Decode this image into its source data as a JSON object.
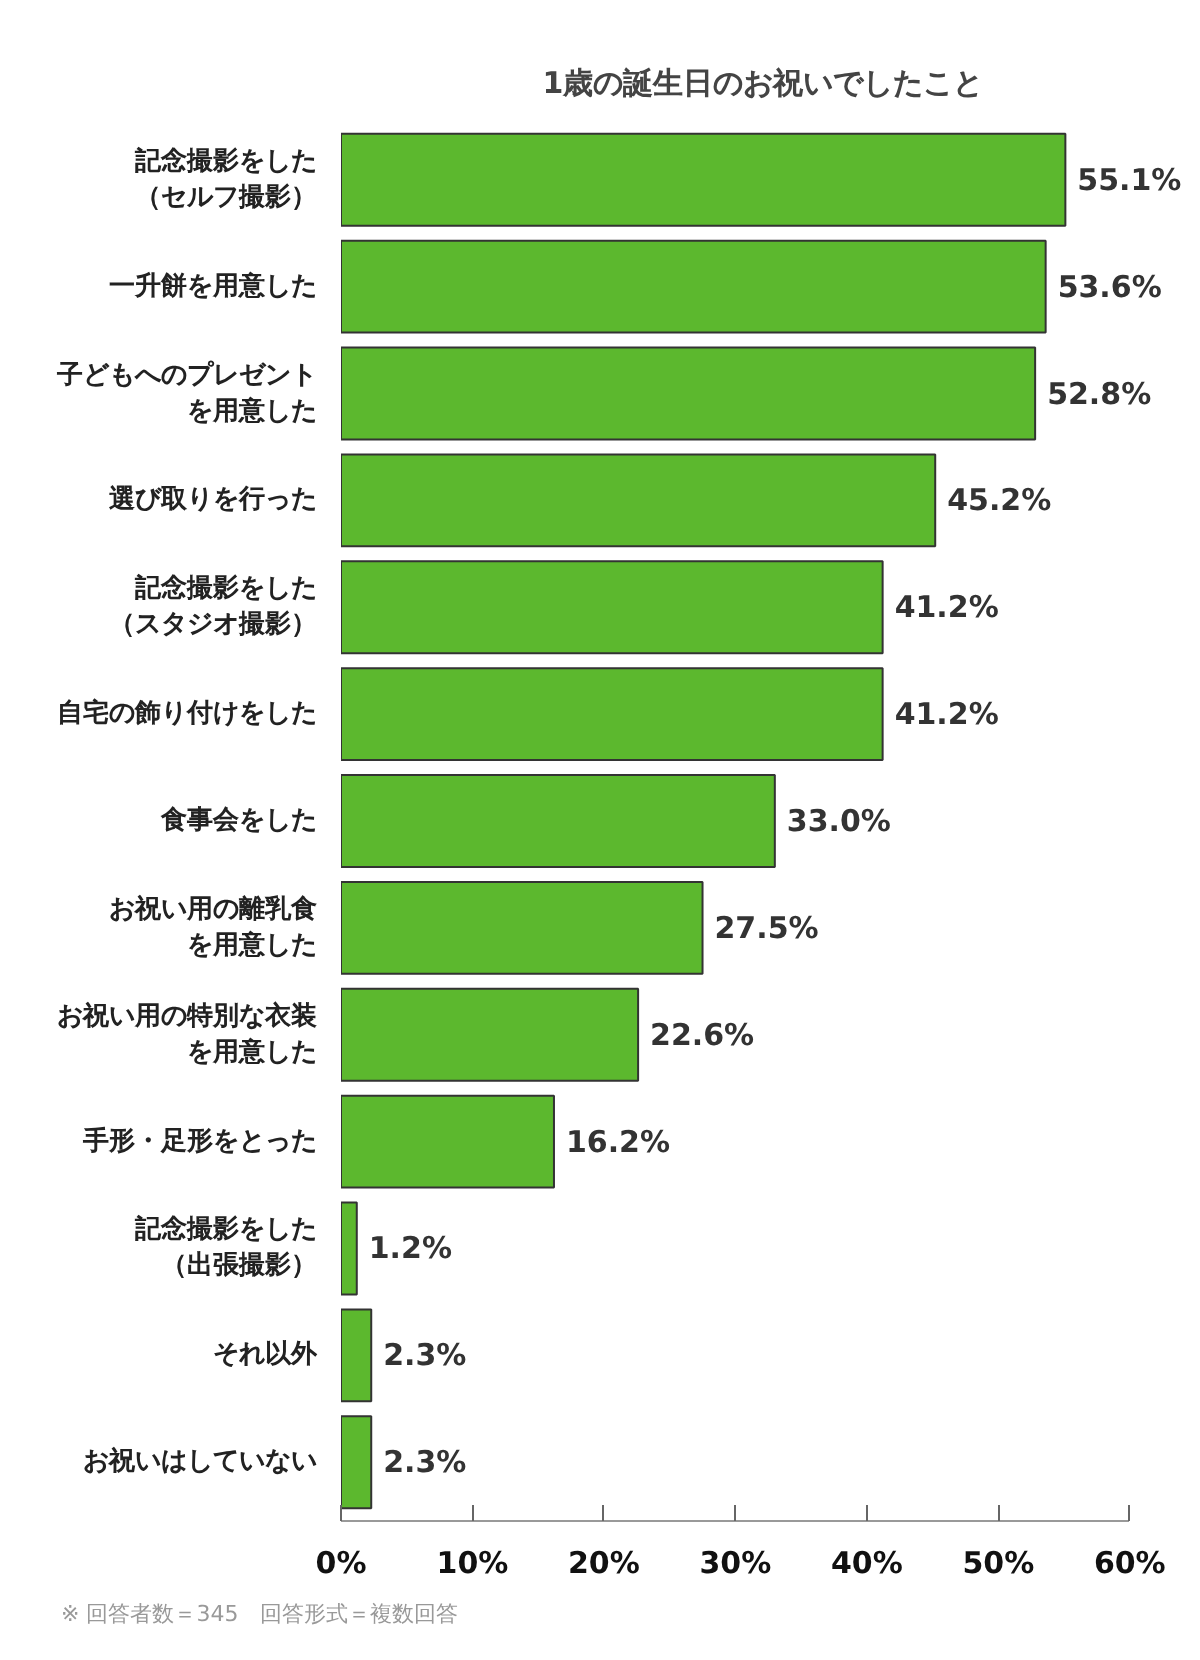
{
  "chart_data": {
    "type": "bar",
    "orientation": "horizontal",
    "title": "1歳の誕生日のお祝いでしたこと",
    "categories": [
      "記念撮影をした（セルフ撮影）",
      "一升餅を用意した",
      "子どもへのプレゼントを用意した",
      "選び取りを行った",
      "記念撮影をした（スタジオ撮影）",
      "自宅の飾り付けをした",
      "食事会をした",
      "お祝い用の離乳食を用意した",
      "お祝い用の特別な衣装を用意した",
      "手形・足形をとった",
      "記念撮影をした（出張撮影）",
      "それ以外",
      "お祝いはしていない"
    ],
    "values": [
      55.1,
      53.6,
      52.8,
      45.2,
      41.2,
      41.2,
      33.0,
      27.5,
      22.6,
      16.2,
      1.2,
      2.3,
      2.3
    ],
    "value_labels": [
      "55.1%",
      "53.6%",
      "52.8%",
      "45.2%",
      "41.2%",
      "41.2%",
      "33.0%",
      "27.5%",
      "22.6%",
      "16.2%",
      "1.2%",
      "2.3%",
      "2.3%"
    ],
    "color": "#5cb82e",
    "xlim": [
      0,
      60
    ],
    "xticks": [
      {
        "value": 0,
        "label": "0%"
      },
      {
        "value": 10,
        "label": "10%"
      },
      {
        "value": 20,
        "label": "20%"
      },
      {
        "value": 30,
        "label": "30%"
      },
      {
        "value": 40,
        "label": "40%"
      },
      {
        "value": 50,
        "label": "50%"
      },
      {
        "value": 60,
        "label": "60%"
      }
    ],
    "grid": false,
    "annotations": [
      "※ 回答者数＝345　回答形式＝複数回答"
    ]
  }
}
